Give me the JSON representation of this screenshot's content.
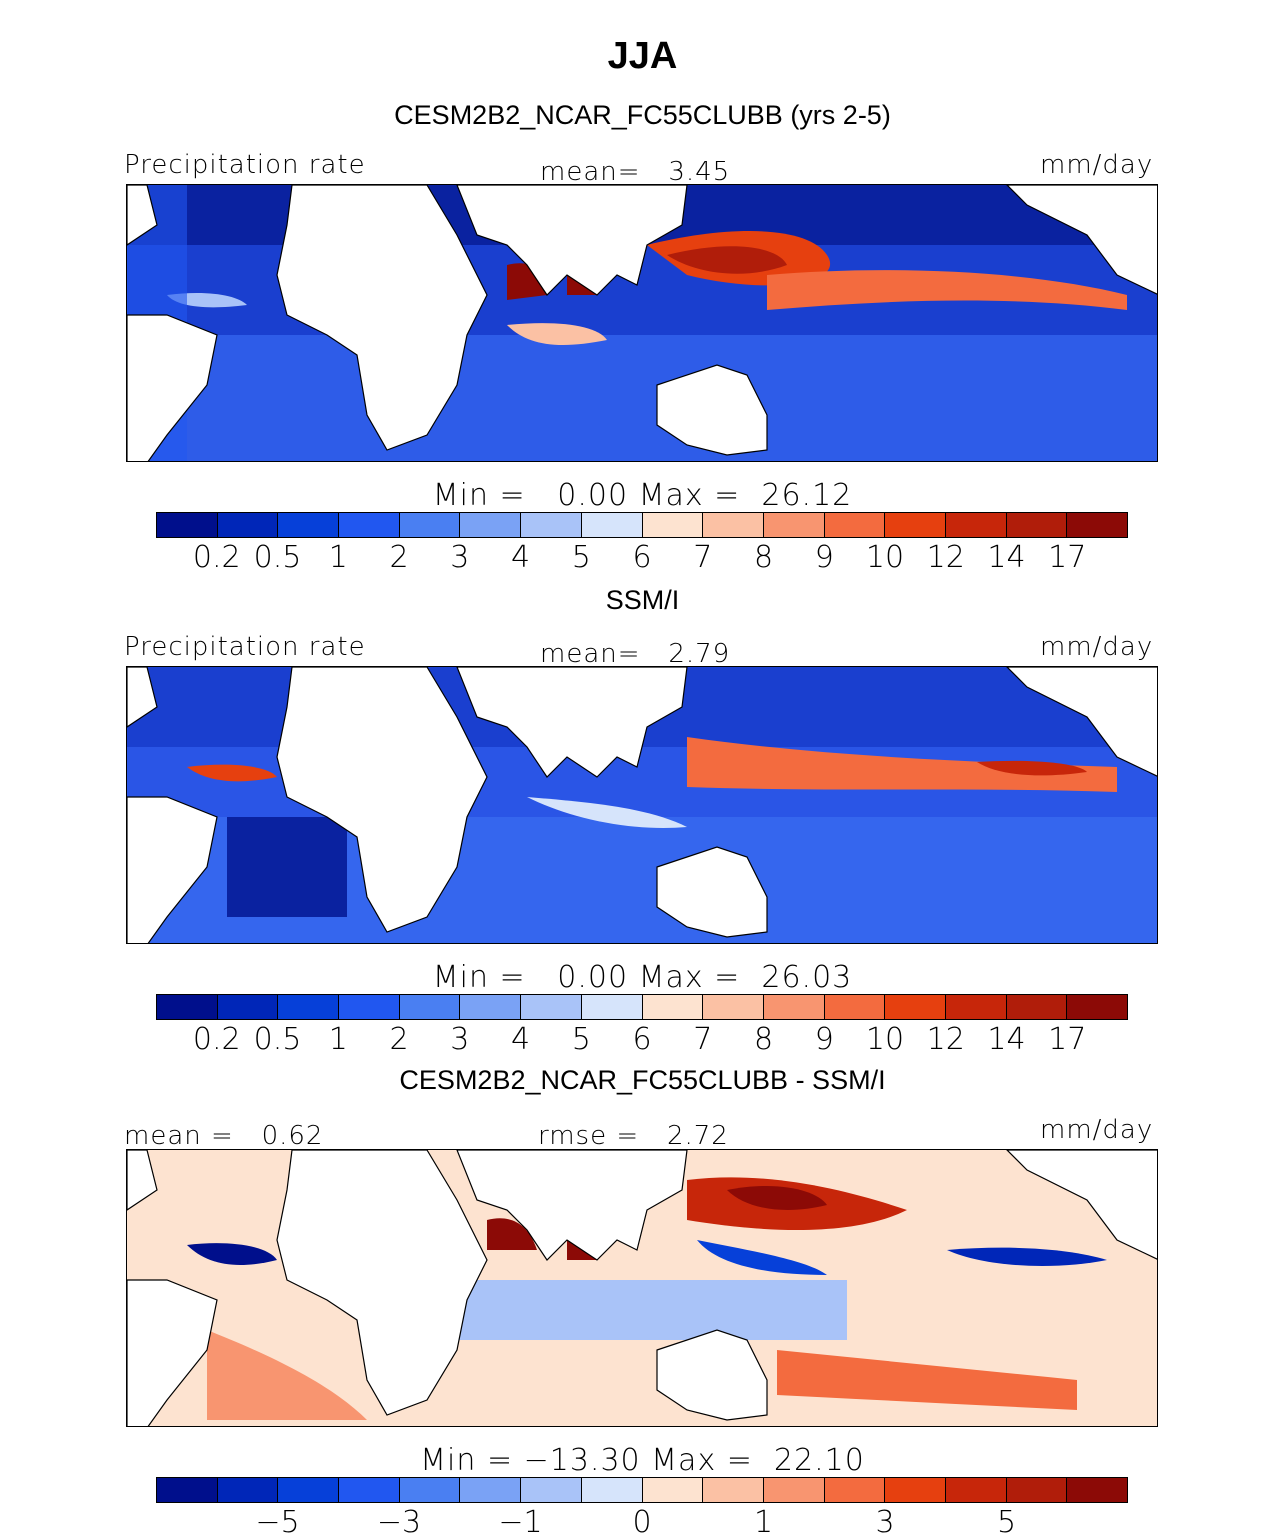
{
  "title": "JJA",
  "panels": [
    {
      "id": "model",
      "heading": "CESM2B2_NCAR_FC55CLUBB (yrs 2-5)",
      "left_label": "Precipitation rate",
      "center_label": "mean=   3.45",
      "right_label": "mm/day",
      "minmax": "Min =   0.00 Max =  26.12",
      "ticks": [
        "0.2",
        "0.5",
        "1",
        "2",
        "3",
        "4",
        "5",
        "6",
        "7",
        "8",
        "9",
        "10",
        "12",
        "14",
        "17"
      ]
    },
    {
      "id": "obs",
      "heading": "SSM/I",
      "left_label": "Precipitation rate",
      "center_label": "mean=   2.79",
      "right_label": "mm/day",
      "minmax": "Min =   0.00 Max =  26.03",
      "ticks": [
        "0.2",
        "0.5",
        "1",
        "2",
        "3",
        "4",
        "5",
        "6",
        "7",
        "8",
        "9",
        "10",
        "12",
        "14",
        "17"
      ]
    },
    {
      "id": "diff",
      "heading": "CESM2B2_NCAR_FC55CLUBB - SSM/I",
      "left_label": "mean =   0.62",
      "center_label": "rmse =   2.72",
      "right_label": "mm/day",
      "minmax": "Min = −13.30 Max =  22.10",
      "ticks": [
        "−5",
        "−3",
        "−1",
        "0",
        "1",
        "3",
        "5"
      ]
    }
  ],
  "colorbar_colors": [
    "#000f8c",
    "#0026b8",
    "#0640d9",
    "#2157f0",
    "#4a7ff2",
    "#7aa2f5",
    "#a9c3f8",
    "#d6e4fb",
    "#fde3d0",
    "#fbc1a4",
    "#f89570",
    "#f36b3f",
    "#e6400f",
    "#c7260a",
    "#b01d0a",
    "#8c0a06"
  ],
  "colors": {
    "ocean_dry": "#0a22a0",
    "ocean_mid": "#4a7ff2",
    "ocean_wet": "#e6400f",
    "land": "#ffffff",
    "coast": "#000000"
  }
}
